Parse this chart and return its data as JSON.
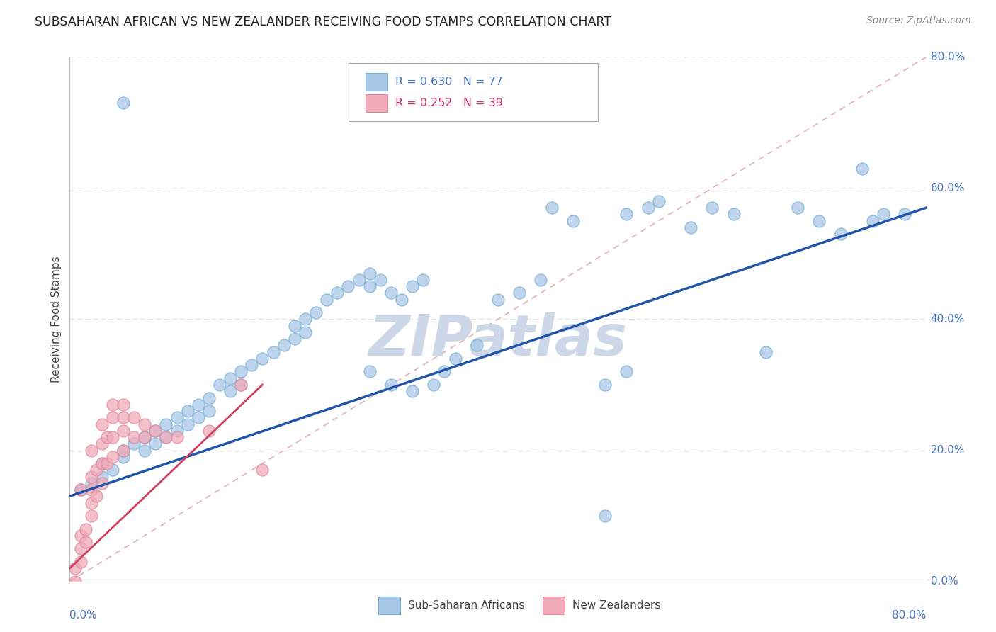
{
  "title": "SUBSAHARAN AFRICAN VS NEW ZEALANDER RECEIVING FOOD STAMPS CORRELATION CHART",
  "source": "Source: ZipAtlas.com",
  "ylabel": "Receiving Food Stamps",
  "xlim": [
    0,
    80
  ],
  "ylim": [
    0,
    80
  ],
  "legend_blue_r": "R = 0.630",
  "legend_blue_n": "N = 77",
  "legend_pink_r": "R = 0.252",
  "legend_pink_n": "N = 39",
  "legend_series1": "Sub-Saharan Africans",
  "legend_series2": "New Zealanders",
  "blue_color": "#a8c8e8",
  "blue_edge_color": "#7aafd4",
  "blue_line_color": "#2255aa",
  "pink_color": "#f0aab8",
  "pink_edge_color": "#e088a0",
  "pink_line_color": "#d04060",
  "dashed_line_color": "#d0a0a8",
  "grid_color": "#dddddd",
  "watermark": "ZIPatlas",
  "watermark_color": "#ccd8e8",
  "title_color": "#222222",
  "source_color": "#888888",
  "axis_label_color": "#4472c4",
  "blue_scatter_x": [
    1,
    2,
    3,
    3,
    4,
    5,
    5,
    6,
    7,
    7,
    8,
    8,
    9,
    9,
    10,
    10,
    11,
    11,
    12,
    12,
    13,
    13,
    14,
    15,
    15,
    16,
    16,
    17,
    18,
    19,
    20,
    21,
    21,
    22,
    22,
    23,
    24,
    25,
    26,
    27,
    28,
    28,
    29,
    30,
    31,
    32,
    33,
    34,
    35,
    36,
    38,
    40,
    42,
    44,
    45,
    47,
    50,
    52,
    54,
    55,
    58,
    60,
    62,
    65,
    68,
    70,
    72,
    74,
    75,
    76,
    78,
    50,
    52,
    28,
    30,
    32,
    5
  ],
  "blue_scatter_y": [
    14,
    15,
    16,
    18,
    17,
    19,
    20,
    21,
    22,
    20,
    23,
    21,
    24,
    22,
    25,
    23,
    26,
    24,
    27,
    25,
    28,
    26,
    30,
    31,
    29,
    32,
    30,
    33,
    34,
    35,
    36,
    37,
    39,
    40,
    38,
    41,
    43,
    44,
    45,
    46,
    47,
    45,
    46,
    44,
    43,
    45,
    46,
    30,
    32,
    34,
    36,
    43,
    44,
    46,
    57,
    55,
    10,
    56,
    57,
    58,
    54,
    57,
    56,
    35,
    57,
    55,
    53,
    63,
    55,
    56,
    56,
    30,
    32,
    32,
    30,
    29,
    73
  ],
  "pink_scatter_x": [
    0.5,
    0.5,
    1,
    1,
    1,
    1,
    1.5,
    1.5,
    2,
    2,
    2,
    2,
    2,
    2.5,
    2.5,
    3,
    3,
    3,
    3,
    3.5,
    3.5,
    4,
    4,
    4,
    4,
    5,
    5,
    5,
    5,
    6,
    6,
    7,
    7,
    8,
    9,
    10,
    13,
    16,
    18
  ],
  "pink_scatter_y": [
    0,
    2,
    3,
    5,
    7,
    14,
    6,
    8,
    10,
    12,
    14,
    16,
    20,
    13,
    17,
    15,
    18,
    21,
    24,
    18,
    22,
    19,
    22,
    25,
    27,
    20,
    23,
    25,
    27,
    22,
    25,
    24,
    22,
    23,
    22,
    22,
    23,
    30,
    17
  ],
  "blue_line_x0": 0,
  "blue_line_y0": 13,
  "blue_line_x1": 80,
  "blue_line_y1": 57,
  "pink_line_x0": 0,
  "pink_line_y0": 2,
  "pink_line_x1": 18,
  "pink_line_y1": 30,
  "diag_color": "#e0b0b8"
}
